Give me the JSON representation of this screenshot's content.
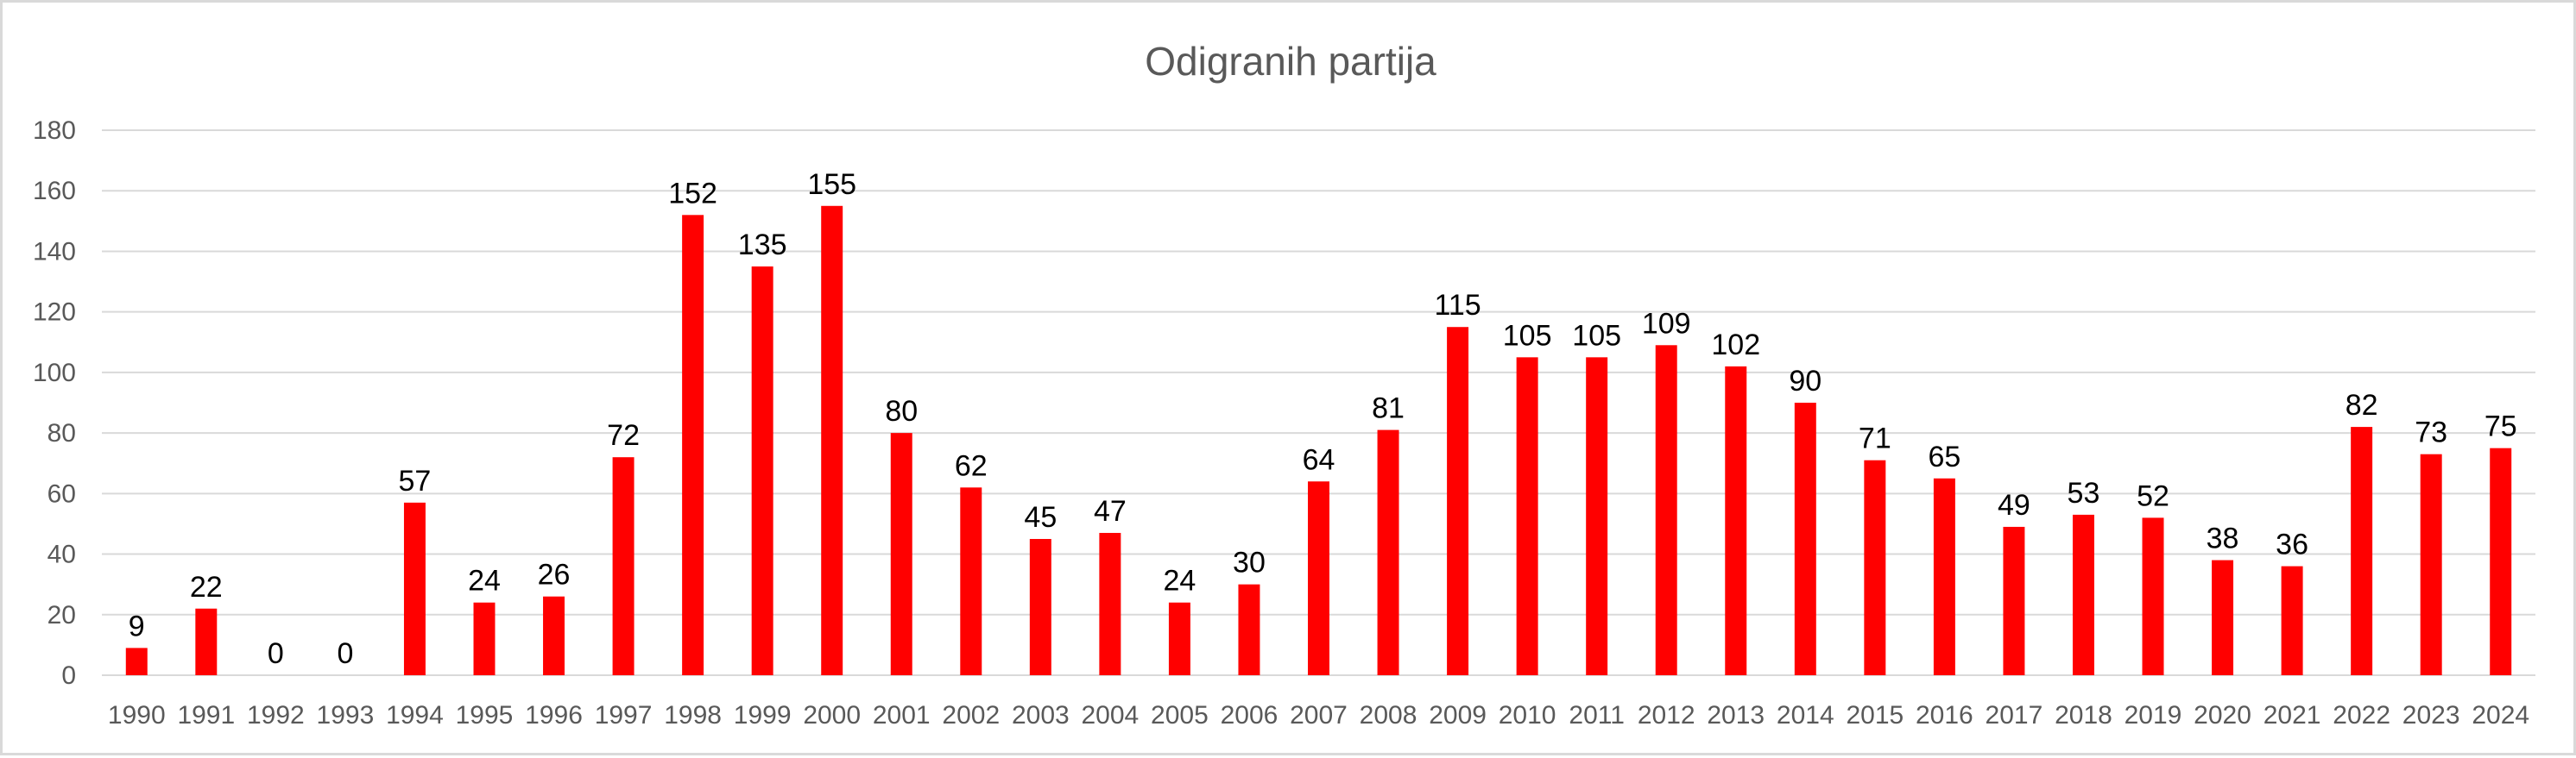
{
  "chart_data": {
    "type": "bar",
    "title": "Odigranih partija",
    "xlabel": "",
    "ylabel": "",
    "categories": [
      "1990",
      "1991",
      "1992",
      "1993",
      "1994",
      "1995",
      "1996",
      "1997",
      "1998",
      "1999",
      "2000",
      "2001",
      "2002",
      "2003",
      "2004",
      "2005",
      "2006",
      "2007",
      "2008",
      "2009",
      "2010",
      "2011",
      "2012",
      "2013",
      "2014",
      "2015",
      "2016",
      "2017",
      "2018",
      "2019",
      "2020",
      "2021",
      "2022",
      "2023",
      "2024"
    ],
    "values": [
      9,
      22,
      0,
      0,
      57,
      24,
      26,
      72,
      152,
      135,
      155,
      80,
      62,
      45,
      47,
      24,
      30,
      64,
      81,
      115,
      105,
      105,
      109,
      102,
      90,
      71,
      65,
      49,
      53,
      52,
      38,
      36,
      82,
      73,
      75
    ],
    "ylim": [
      0,
      180
    ],
    "yticks": [
      0,
      20,
      40,
      60,
      80,
      100,
      120,
      140,
      160,
      180
    ],
    "grid": true,
    "legend": "none",
    "bar_color": "#ff0000",
    "grid_color": "#d9d9d9",
    "text_color": "#595959"
  }
}
